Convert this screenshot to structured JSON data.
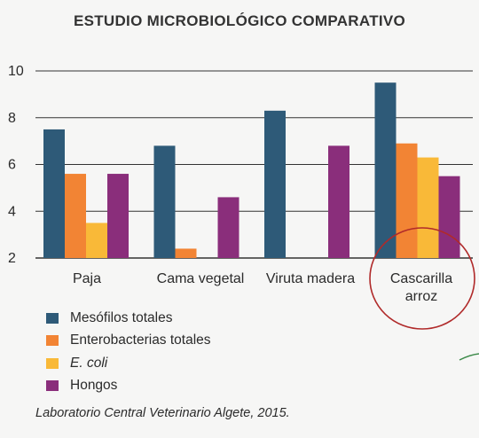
{
  "colors": {
    "mesofilos": "#2e5a78",
    "enterobacterias": "#f28434",
    "ecoli": "#f9b938",
    "hongos": "#8a2e7b",
    "highlight": "#b02a2a",
    "axis": "#333333"
  },
  "chart_data": {
    "type": "bar",
    "title": "ESTUDIO MICROBIOLÓGICO COMPARATIVO",
    "categories": [
      "Paja",
      "Cama vegetal",
      "Viruta madera",
      "Cascarilla arroz"
    ],
    "series": [
      {
        "name": "Mesófilos totales",
        "values": [
          7.5,
          6.8,
          8.3,
          9.5
        ]
      },
      {
        "name": "Enterobacterias totales",
        "values": [
          5.6,
          2.4,
          null,
          6.9
        ]
      },
      {
        "name": "E. coli",
        "values": [
          3.5,
          null,
          null,
          6.3
        ]
      },
      {
        "name": "Hongos",
        "values": [
          5.6,
          4.6,
          6.8,
          5.5
        ]
      }
    ],
    "yticks": [
      2,
      4,
      6,
      8,
      10
    ],
    "ylim": [
      2,
      10
    ],
    "grid": true,
    "legend_position": "bottom-left",
    "highlighted_category": "Cascarilla arroz"
  },
  "source": "Laboratorio Central Veterinario Algete, 2015."
}
